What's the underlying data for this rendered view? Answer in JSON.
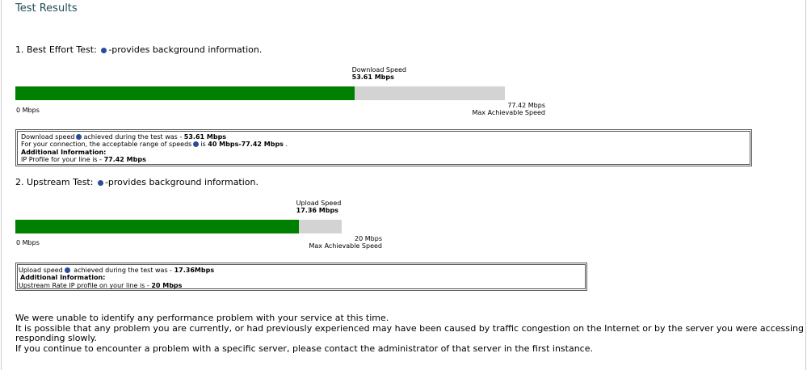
{
  "header": {
    "title": "Test Results"
  },
  "tests": [
    {
      "heading": "1. Best Effort Test:",
      "help": "-provides background information.",
      "bar_title": "Download Speed",
      "speed": {
        "value": 53.61,
        "label": "53.61 Mbps"
      },
      "min": {
        "value": 0,
        "label": "0 Mbps"
      },
      "max": {
        "value": 77.42,
        "label": "77.42 Mbps"
      },
      "max_caption": "Max Achievable Speed",
      "info": [
        [
          "Download speed",
          "achieved during the test was - ",
          "53.61 Mbps"
        ],
        [
          "For your connection, the acceptable range of speeds",
          "is ",
          "40 Mbps-77.42 Mbps",
          " ."
        ],
        [
          "Additional Information:"
        ],
        [
          "IP Profile for your line is - ",
          "77.42 Mbps"
        ]
      ]
    },
    {
      "heading": "2. Upstream Test:",
      "help": "-provides background information.",
      "bar_title": "Upload Speed",
      "speed": {
        "value": 17.36,
        "label": "17.36 Mbps"
      },
      "min": {
        "value": 0,
        "label": "0 Mbps"
      },
      "max": {
        "value": 20,
        "label": "20 Mbps"
      },
      "max_caption": "Max Achievable Speed",
      "info": [
        [
          "Upload speed",
          " achieved during the test was - ",
          "17.36Mbps"
        ],
        [
          "Additional Information:"
        ],
        [
          "Upstream Rate IP profile on your line is - ",
          "20 Mbps"
        ]
      ]
    }
  ],
  "summary": [
    "We were unable to identify any performance problem with your service at this time.",
    "It is possible that any problem you are currently, or had previously experienced may have been caused by traffic congestion on the Internet or by the server you were accessing responding slowly.",
    "If you continue to encounter a problem with a specific server, please contact the administrator of that server in the first instance."
  ]
}
